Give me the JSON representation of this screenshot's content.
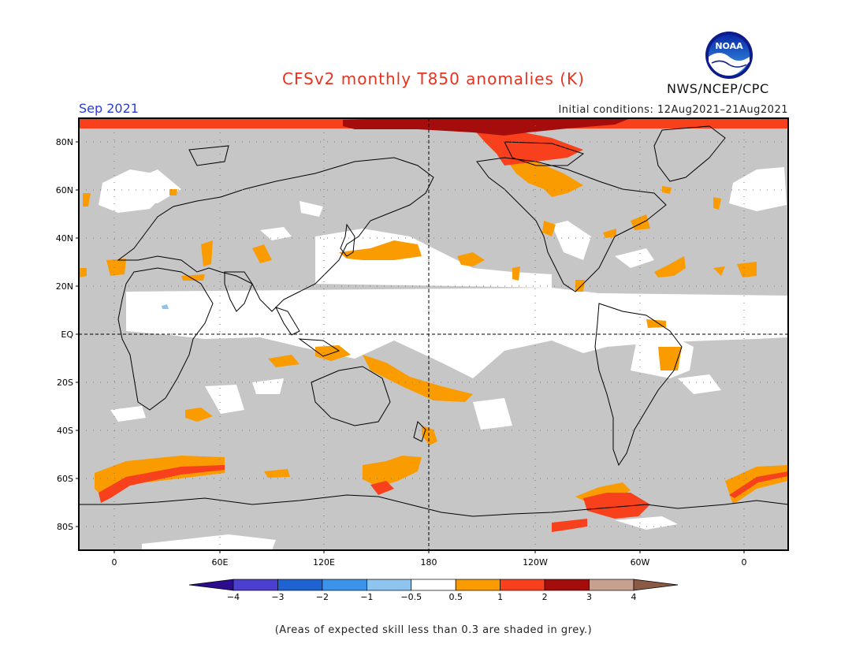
{
  "title": "CFSv2 monthly T850 anomalies (K)",
  "month": "Sep 2021",
  "initial_conditions": "Initial conditions: 12Aug2021–21Aug2021",
  "org": "NWS/NCEP/CPC",
  "logo_text": "NOAA",
  "footer": "(Areas of expected skill less than 0.3 are shaded in grey.)",
  "lat_labels": [
    "80N",
    "60N",
    "40N",
    "20N",
    "EQ",
    "20S",
    "40S",
    "60S",
    "80S"
  ],
  "lon_labels": [
    "0",
    "60E",
    "120E",
    "180",
    "120W",
    "60W",
    "0"
  ],
  "colorbar": {
    "colors": [
      "#2a0c8c",
      "#4c3fcf",
      "#1f63d3",
      "#3b93ea",
      "#8ec4f0",
      "#ffffff",
      "#fa9b00",
      "#f8401c",
      "#a50d0d",
      "#c8a090",
      "#8a5a44"
    ],
    "labels": [
      "−4",
      "−3",
      "−2",
      "−1",
      "−0.5",
      "0.5",
      "1",
      "2",
      "3",
      "4"
    ]
  },
  "colors": {
    "skill_grey": "#c6c6c6",
    "neutral": "#ffffff",
    "warm_0_5_1": "#fa9b00",
    "warm_1_2": "#f8401c",
    "warm_2_3": "#a50d0d",
    "coast": "#000000"
  }
}
